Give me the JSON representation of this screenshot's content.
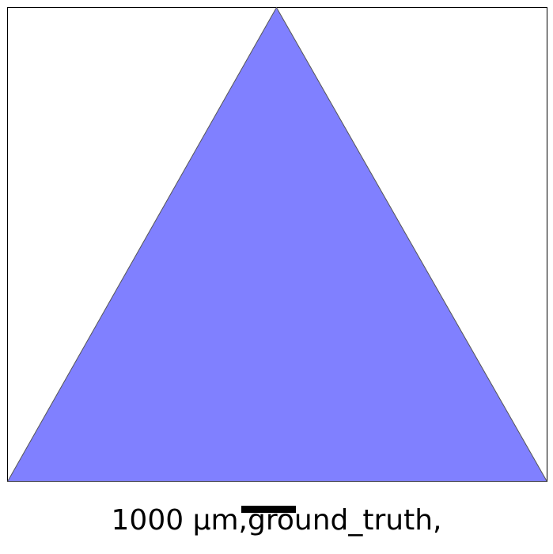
{
  "figure": {
    "shape": "triangle",
    "fill_color": "#8080ff",
    "edge_color": "#555555",
    "frame_color": "#000000",
    "background": "#ffffff"
  },
  "scale_bar": {
    "color": "#000000"
  },
  "caption": {
    "text": "1000 µm,ground_truth,"
  }
}
